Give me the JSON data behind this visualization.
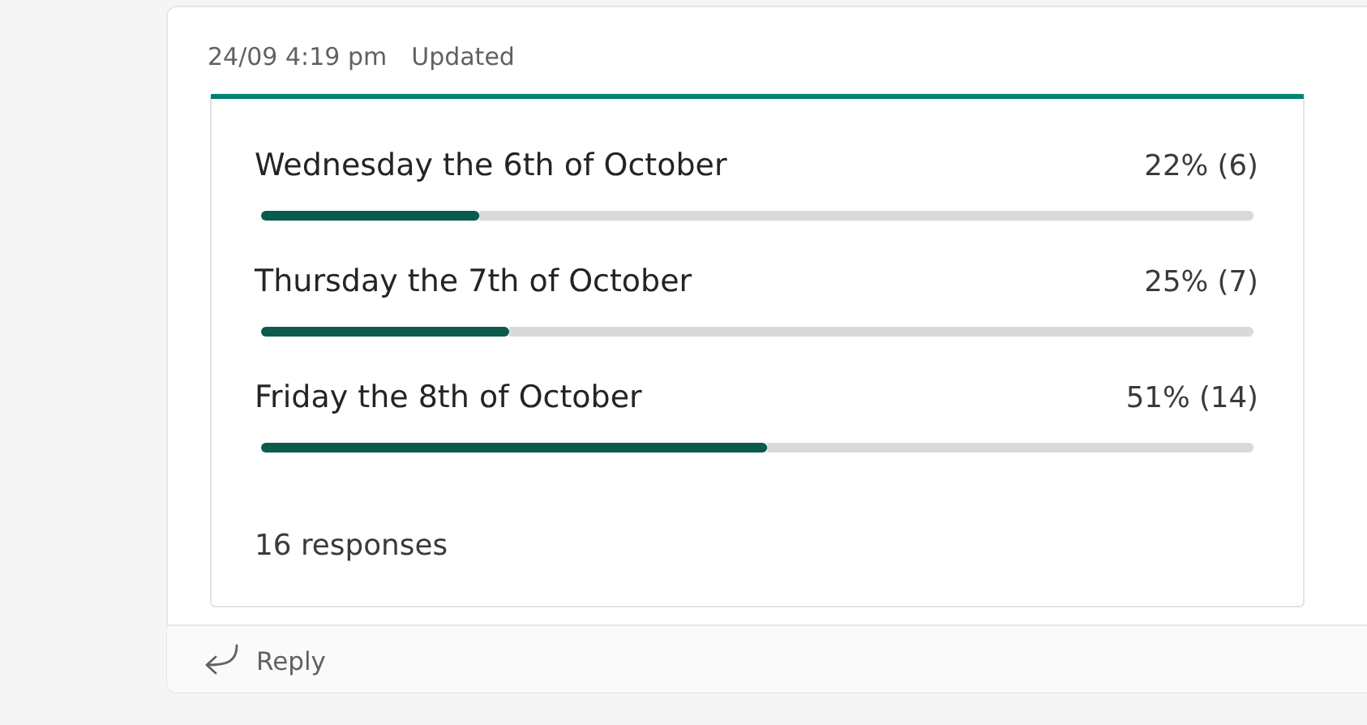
{
  "chart_data": {
    "type": "bar",
    "orientation": "horizontal",
    "categories": [
      "Wednesday the 6th of October",
      "Thursday the 7th of October",
      "Friday the 8th of October"
    ],
    "values": [
      22,
      25,
      51
    ],
    "value_labels": [
      "22% (6)",
      "25% (7)",
      "51% (14)"
    ],
    "color": "#0b5b4c",
    "xlim": [
      0,
      100
    ],
    "tick_labels": "y",
    "annotations": [
      "24/09 4:19 pm",
      "Updated",
      "16 responses",
      "Reply"
    ]
  }
}
